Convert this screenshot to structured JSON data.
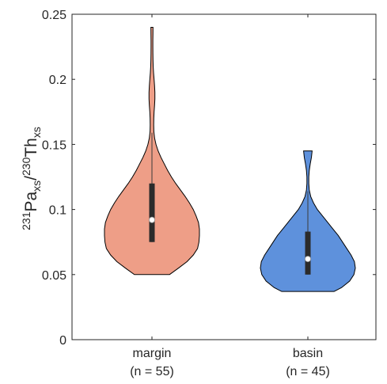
{
  "chart_data": {
    "type": "violin",
    "ylabel": {
      "parts": [
        {
          "text": "231",
          "style": "sup"
        },
        {
          "text": "Pa",
          "style": "normal"
        },
        {
          "text": "xs",
          "style": "sub"
        },
        {
          "text": "/",
          "style": "normal"
        },
        {
          "text": "230",
          "style": "sup"
        },
        {
          "text": "Th",
          "style": "normal"
        },
        {
          "text": "xs",
          "style": "sub"
        }
      ]
    },
    "ylim": [
      0,
      0.25
    ],
    "yticks": [
      0,
      0.05,
      0.1,
      0.15,
      0.2,
      0.25
    ],
    "ytick_labels": [
      "0",
      "0.05",
      "0.1",
      "0.15",
      "0.2",
      "0.25"
    ],
    "grid": false,
    "categories": [
      {
        "label": "margin",
        "n_label": "(n = 55)",
        "color": "#ee9e87",
        "min": 0.05,
        "max": 0.24,
        "whisker_low": 0.075,
        "whisker_high": 0.159,
        "q1": 0.075,
        "q3": 0.12,
        "median": 0.092,
        "density": [
          [
            0.05,
            0.37
          ],
          [
            0.055,
            0.56
          ],
          [
            0.06,
            0.74
          ],
          [
            0.065,
            0.87
          ],
          [
            0.07,
            0.96
          ],
          [
            0.075,
            0.99
          ],
          [
            0.08,
            1.0
          ],
          [
            0.085,
            1.0
          ],
          [
            0.09,
            0.98
          ],
          [
            0.095,
            0.93
          ],
          [
            0.1,
            0.87
          ],
          [
            0.105,
            0.79
          ],
          [
            0.11,
            0.7
          ],
          [
            0.115,
            0.6
          ],
          [
            0.12,
            0.5
          ],
          [
            0.125,
            0.41
          ],
          [
            0.13,
            0.33
          ],
          [
            0.135,
            0.26
          ],
          [
            0.14,
            0.19
          ],
          [
            0.145,
            0.13
          ],
          [
            0.15,
            0.085
          ],
          [
            0.155,
            0.055
          ],
          [
            0.16,
            0.04
          ],
          [
            0.165,
            0.037
          ],
          [
            0.17,
            0.039
          ],
          [
            0.175,
            0.045
          ],
          [
            0.18,
            0.055
          ],
          [
            0.185,
            0.062
          ],
          [
            0.19,
            0.062
          ],
          [
            0.195,
            0.055
          ],
          [
            0.2,
            0.045
          ],
          [
            0.205,
            0.034
          ],
          [
            0.21,
            0.026
          ],
          [
            0.215,
            0.022
          ],
          [
            0.22,
            0.02
          ],
          [
            0.225,
            0.019
          ],
          [
            0.23,
            0.019
          ],
          [
            0.235,
            0.021
          ],
          [
            0.24,
            0.022
          ]
        ]
      },
      {
        "label": "basin",
        "n_label": "(n = 45)",
        "color": "#5e91dc",
        "min": 0.037,
        "max": 0.145,
        "whisker_low": 0.05,
        "whisker_high": 0.114,
        "q1": 0.05,
        "q3": 0.083,
        "median": 0.062,
        "density": [
          [
            0.037,
            0.55
          ],
          [
            0.04,
            0.71
          ],
          [
            0.045,
            0.88
          ],
          [
            0.05,
            0.97
          ],
          [
            0.055,
            1.0
          ],
          [
            0.06,
            0.98
          ],
          [
            0.065,
            0.91
          ],
          [
            0.07,
            0.82
          ],
          [
            0.075,
            0.73
          ],
          [
            0.08,
            0.64
          ],
          [
            0.085,
            0.53
          ],
          [
            0.09,
            0.42
          ],
          [
            0.095,
            0.31
          ],
          [
            0.1,
            0.2
          ],
          [
            0.105,
            0.12
          ],
          [
            0.11,
            0.06
          ],
          [
            0.115,
            0.03
          ],
          [
            0.12,
            0.02
          ],
          [
            0.125,
            0.02
          ],
          [
            0.13,
            0.03
          ],
          [
            0.135,
            0.05
          ],
          [
            0.14,
            0.075
          ],
          [
            0.145,
            0.09
          ]
        ]
      }
    ]
  }
}
